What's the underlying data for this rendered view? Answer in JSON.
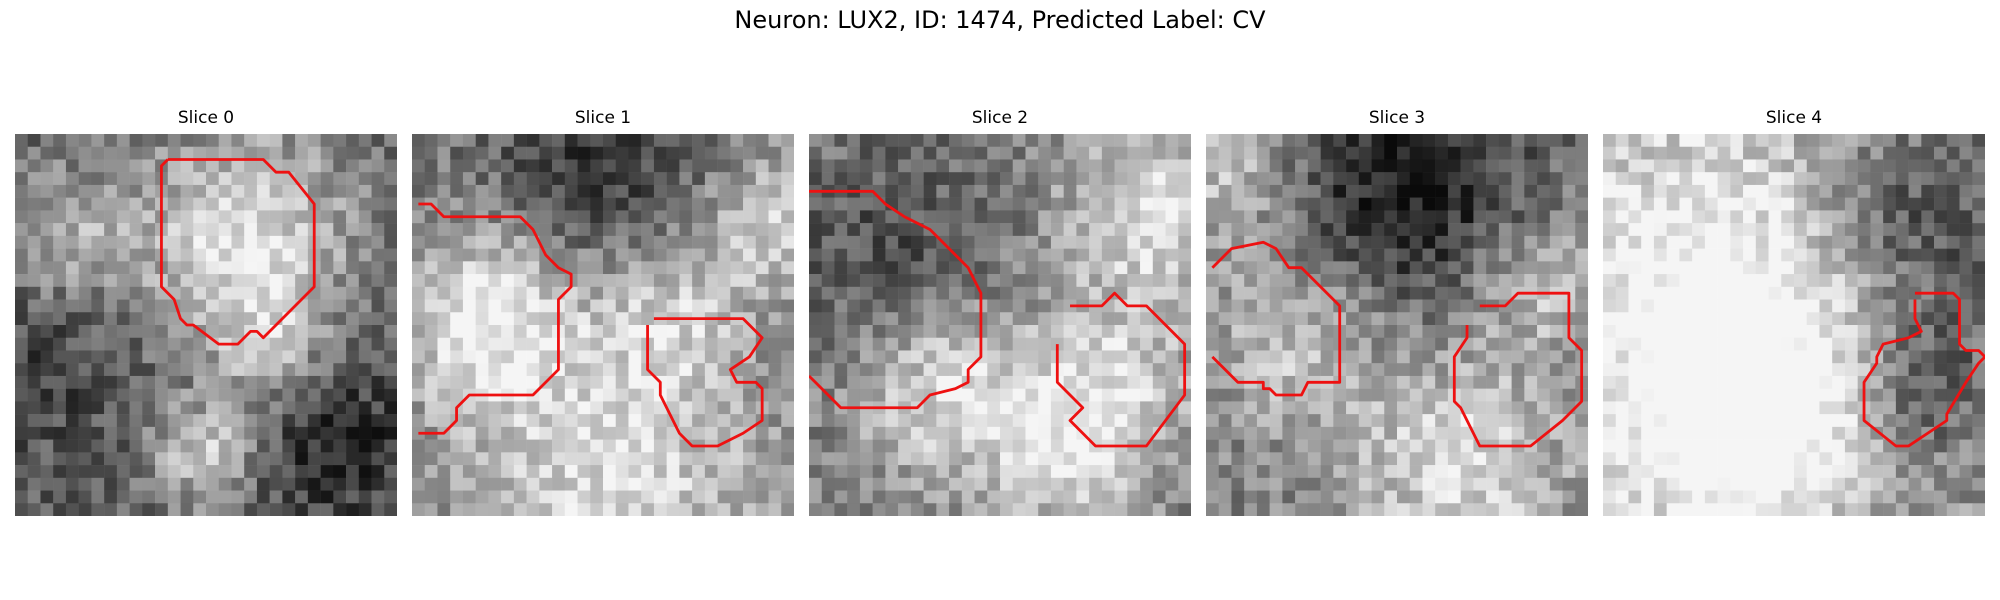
{
  "figure": {
    "title": "Neuron: LUX2, ID: 1474, Predicted Label: CV"
  },
  "colors": {
    "contour": "#ee1111",
    "background": "#ffffff"
  },
  "panels": [
    {
      "title": "Slice 0",
      "contour": [
        [
          12,
          2
        ],
        [
          19.5,
          2
        ],
        [
          20.5,
          3
        ],
        [
          21.5,
          3
        ],
        [
          23.5,
          5.5
        ],
        [
          23.5,
          12
        ],
        [
          19.5,
          16
        ],
        [
          19,
          15.5
        ],
        [
          18.5,
          15.5
        ],
        [
          17.5,
          16.5
        ],
        [
          16,
          16.5
        ],
        [
          14,
          15
        ],
        [
          13.5,
          15
        ],
        [
          13,
          14.5
        ],
        [
          12.5,
          13
        ],
        [
          11.5,
          12
        ],
        [
          11.5,
          2.5
        ],
        [
          12,
          2
        ]
      ]
    },
    {
      "title": "Slice 1",
      "contour": [
        [
          0.5,
          5.5
        ],
        [
          1.5,
          5.5
        ],
        [
          2.5,
          6.5
        ],
        [
          8.5,
          6.5
        ],
        [
          9.5,
          7.5
        ],
        [
          10.5,
          9.5
        ],
        [
          11.5,
          10.5
        ],
        [
          12.5,
          11
        ],
        [
          12.5,
          12
        ],
        [
          11.5,
          13
        ],
        [
          11.5,
          18.5
        ],
        [
          9.5,
          20.5
        ],
        [
          4.5,
          20.5
        ],
        [
          3.5,
          21.5
        ],
        [
          3.5,
          22.5
        ],
        [
          2.5,
          23.5
        ],
        [
          0.5,
          23.5
        ]
      ]
    },
    {
      "title": "Slice 1",
      "contour": [
        [
          19,
          14.5
        ],
        [
          26,
          14.5
        ],
        [
          27.5,
          16
        ],
        [
          26.5,
          17.5
        ],
        [
          25,
          18.5
        ],
        [
          25.5,
          19.5
        ],
        [
          27,
          19.5
        ],
        [
          27.5,
          20
        ],
        [
          27.5,
          22.5
        ],
        [
          26,
          23.5
        ],
        [
          24,
          24.5
        ],
        [
          22,
          24.5
        ],
        [
          21,
          23.5
        ],
        [
          20.5,
          22.5
        ],
        [
          20,
          21.5
        ],
        [
          19.5,
          20.5
        ],
        [
          19.5,
          19.5
        ],
        [
          18.5,
          18.5
        ],
        [
          18.5,
          15
        ]
      ]
    },
    {
      "title": "Slice 2",
      "contour": [
        [
          0,
          4.5
        ],
        [
          5,
          4.5
        ],
        [
          6,
          5.5
        ],
        [
          7.5,
          6.5
        ],
        [
          9.5,
          7.5
        ],
        [
          10.5,
          8.5
        ],
        [
          12.5,
          10.5
        ],
        [
          13.5,
          12.5
        ],
        [
          13.5,
          17.5
        ],
        [
          12.5,
          18.5
        ],
        [
          12.5,
          19.5
        ],
        [
          11.5,
          20
        ],
        [
          9.5,
          20.5
        ],
        [
          8.5,
          21.5
        ],
        [
          2.5,
          21.5
        ],
        [
          0.5,
          19.5
        ],
        [
          0,
          19
        ]
      ]
    },
    {
      "title": "Slice 2",
      "contour": [
        [
          20.5,
          13.5
        ],
        [
          23,
          13.5
        ],
        [
          24,
          12.5
        ],
        [
          25,
          13.5
        ],
        [
          26.5,
          13.5
        ],
        [
          28.5,
          15.5
        ],
        [
          29.5,
          16.5
        ],
        [
          29.5,
          20.5
        ],
        [
          26.5,
          24.5
        ],
        [
          22.5,
          24.5
        ],
        [
          20.5,
          22.5
        ],
        [
          21.5,
          21.5
        ],
        [
          20,
          20
        ],
        [
          19.5,
          19.5
        ],
        [
          19.5,
          16.5
        ]
      ]
    },
    {
      "title": "Slice 3",
      "contour": [
        [
          0.5,
          10.5
        ],
        [
          2,
          9
        ],
        [
          4.5,
          8.5
        ],
        [
          5.5,
          9
        ],
        [
          6.5,
          10.5
        ],
        [
          7.5,
          10.5
        ],
        [
          10,
          13
        ],
        [
          10.5,
          13.5
        ],
        [
          10.5,
          19.5
        ],
        [
          8,
          19.5
        ],
        [
          7.5,
          20.5
        ],
        [
          5.5,
          20.5
        ],
        [
          5,
          20
        ],
        [
          4.5,
          20
        ],
        [
          4.5,
          19.5
        ],
        [
          2.5,
          19.5
        ],
        [
          0.5,
          17.5
        ]
      ]
    },
    {
      "title": "Slice 3",
      "contour": [
        [
          21.5,
          13.5
        ],
        [
          23.5,
          13.5
        ],
        [
          24.5,
          12.5
        ],
        [
          28.5,
          12.5
        ],
        [
          28.5,
          16
        ],
        [
          29.5,
          17
        ],
        [
          29.5,
          21
        ],
        [
          28,
          22.5
        ],
        [
          25.5,
          24.5
        ],
        [
          21.5,
          24.5
        ],
        [
          20.5,
          22.5
        ],
        [
          20,
          21.5
        ],
        [
          19.5,
          21
        ],
        [
          19.5,
          18.5
        ],
        [
          19.5,
          17.5
        ],
        [
          20.5,
          16
        ],
        [
          20.5,
          15
        ]
      ]
    },
    {
      "title": "Slice 4",
      "contour": [
        [
          24.5,
          12.5
        ],
        [
          27.5,
          12.5
        ],
        [
          28,
          13
        ],
        [
          28,
          16.5
        ],
        [
          28.5,
          17
        ],
        [
          29.5,
          17
        ],
        [
          30,
          17.5
        ],
        [
          29.5,
          18
        ],
        [
          28.5,
          19.5
        ],
        [
          27,
          22
        ],
        [
          27,
          22.5
        ],
        [
          24,
          24.5
        ],
        [
          23,
          24.5
        ],
        [
          20.5,
          22.5
        ],
        [
          20.5,
          19.5
        ],
        [
          21.5,
          18
        ],
        [
          21.5,
          17.5
        ],
        [
          22,
          16.5
        ],
        [
          24,
          16
        ],
        [
          25,
          15.5
        ],
        [
          24.5,
          14.5
        ],
        [
          24.5,
          13
        ]
      ]
    }
  ]
}
